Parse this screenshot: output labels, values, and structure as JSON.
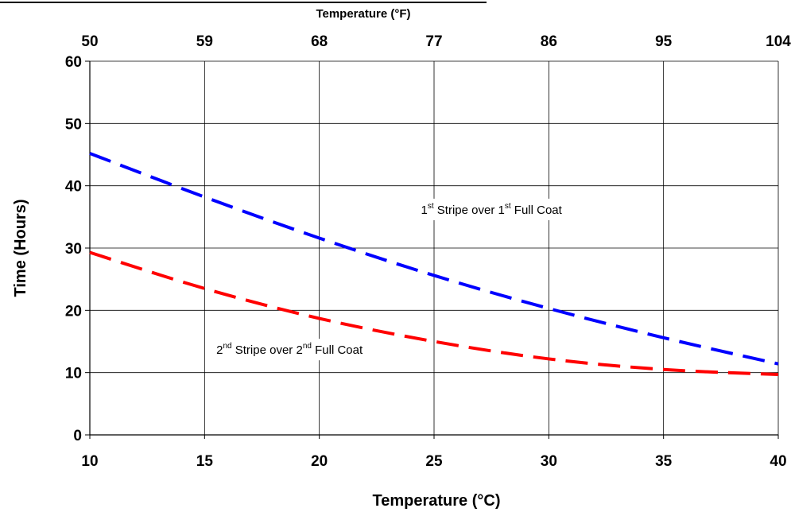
{
  "chart_data": {
    "type": "line",
    "xlabel": "Temperature (°C)",
    "ylabel": "Time (Hours)",
    "x2label": "Temperature (°F)",
    "xlim": [
      10,
      40
    ],
    "ylim": [
      0,
      60
    ],
    "x_ticks": [
      10,
      15,
      20,
      25,
      30,
      35,
      40
    ],
    "y_ticks": [
      0,
      10,
      20,
      30,
      40,
      50,
      60
    ],
    "x2_ticks": [
      50,
      59,
      68,
      77,
      86,
      95,
      104
    ],
    "grid": true,
    "series": [
      {
        "color": "#0000ff",
        "dash": true,
        "x": [
          10,
          15,
          20,
          25,
          30,
          35,
          40
        ],
        "y": [
          45.2,
          38.2,
          31.6,
          25.6,
          20.3,
          15.6,
          11.4
        ]
      },
      {
        "color": "#ff0000",
        "dash": true,
        "x": [
          10,
          15,
          20,
          25,
          30,
          35,
          40
        ],
        "y": [
          29.3,
          23.5,
          18.7,
          15.0,
          12.2,
          10.5,
          9.7
        ]
      }
    ],
    "annotations": [
      {
        "parts": [
          {
            "t": "1"
          },
          {
            "t": "st",
            "sup": true
          },
          {
            "t": " Stripe over 1"
          },
          {
            "t": "st",
            "sup": true
          },
          {
            "t": " Full Coat"
          }
        ],
        "x": 27.5,
        "y": 35.5
      },
      {
        "parts": [
          {
            "t": "2"
          },
          {
            "t": "nd",
            "sup": true
          },
          {
            "t": " Stripe over 2"
          },
          {
            "t": "nd",
            "sup": true
          },
          {
            "t": " Full Coat"
          }
        ],
        "x": 18.7,
        "y": 13.0
      }
    ]
  }
}
